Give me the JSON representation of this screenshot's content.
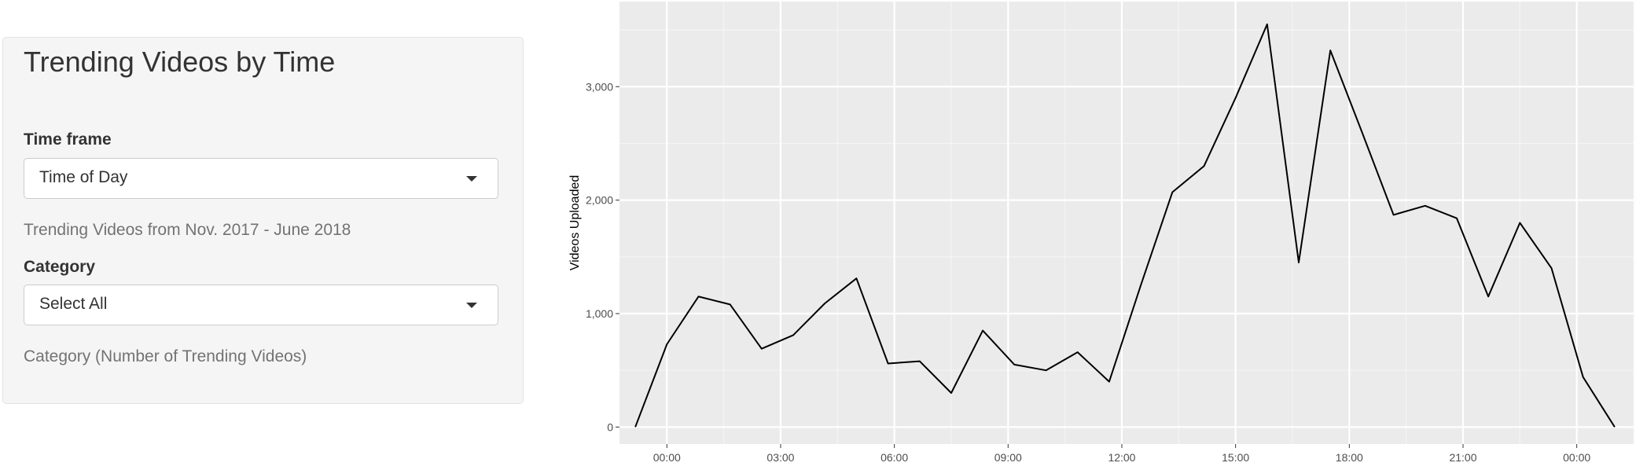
{
  "sidebar": {
    "title": "Trending Videos by Time",
    "time_frame": {
      "label": "Time frame",
      "selected": "Time of Day",
      "help": "Trending Videos from Nov. 2017 - June 2018"
    },
    "category": {
      "label": "Category",
      "selected": "Select All",
      "help": "Category (Number of Trending Videos)"
    }
  },
  "colors": {
    "panel_bg": "#ebebeb",
    "grid_major": "#ffffff",
    "grid_minor": "#f5f5f5",
    "line": "#000000",
    "tick_text": "#4d4d4d"
  },
  "chart_data": {
    "type": "line",
    "title": "",
    "xlabel": "",
    "ylabel": "Videos Uploaded",
    "xlim": [
      "22:45",
      "01:30 (+1 day)"
    ],
    "ylim": [
      -150,
      3750
    ],
    "x_tick_labels": [
      "00:00",
      "03:00",
      "06:00",
      "09:00",
      "12:00",
      "15:00",
      "18:00",
      "21:00",
      "00:00"
    ],
    "y_tick_labels": [
      "0",
      "1,000",
      "2,000",
      "3,000"
    ],
    "grid": true,
    "legend": "none",
    "x": [
      "23:10",
      "00:00",
      "00:50",
      "01:40",
      "02:30",
      "03:20",
      "04:10",
      "05:00",
      "05:50",
      "06:40",
      "07:30",
      "08:20",
      "09:10",
      "10:00",
      "10:50",
      "11:40",
      "12:30",
      "13:20",
      "14:10",
      "15:00",
      "15:50",
      "16:40",
      "17:30",
      "18:20",
      "19:10",
      "20:00",
      "20:50",
      "21:40",
      "22:30",
      "23:20",
      "00:10",
      "01:00 (+1 day)"
    ],
    "values": [
      0,
      730,
      1150,
      1080,
      690,
      810,
      1090,
      1310,
      560,
      580,
      300,
      850,
      550,
      500,
      660,
      400,
      1250,
      2070,
      2300,
      2900,
      3550,
      1450,
      3320,
      2600,
      1870,
      1950,
      1840,
      1150,
      1800,
      1400,
      440,
      0
    ]
  }
}
